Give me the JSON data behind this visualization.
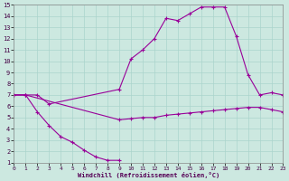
{
  "xlabel": "Windchill (Refroidissement éolien,°C)",
  "bg_color": "#cce8e0",
  "grid_color": "#aad4cc",
  "line_color": "#990099",
  "xlim": [
    0,
    23
  ],
  "ylim": [
    1,
    15
  ],
  "xticks": [
    0,
    1,
    2,
    3,
    4,
    5,
    6,
    7,
    8,
    9,
    10,
    11,
    12,
    13,
    14,
    15,
    16,
    17,
    18,
    19,
    20,
    21,
    22,
    23
  ],
  "yticks": [
    1,
    2,
    3,
    4,
    5,
    6,
    7,
    8,
    9,
    10,
    11,
    12,
    13,
    14,
    15
  ],
  "curve1_x": [
    0,
    1,
    2,
    3,
    4,
    5,
    6,
    7,
    8,
    9
  ],
  "curve1_y": [
    7.0,
    7.0,
    5.5,
    4.3,
    3.3,
    2.8,
    2.1,
    1.5,
    1.2,
    1.2
  ],
  "curve2_x": [
    0,
    1,
    2,
    9,
    10,
    11,
    12,
    13,
    14,
    15,
    16,
    17,
    18,
    19,
    20,
    21,
    22,
    23
  ],
  "curve2_y": [
    7.0,
    7.0,
    7.0,
    4.8,
    4.9,
    5.0,
    5.0,
    5.2,
    5.3,
    5.4,
    5.5,
    5.6,
    5.7,
    5.8,
    5.9,
    5.9,
    5.7,
    5.5
  ],
  "curve3_x": [
    0,
    1,
    2,
    3,
    9,
    10,
    11,
    12,
    13,
    14,
    15,
    16,
    17,
    18,
    19,
    20,
    21,
    22,
    23
  ],
  "curve3_y": [
    7.0,
    7.0,
    7.0,
    6.2,
    7.5,
    10.2,
    11.0,
    12.0,
    13.8,
    13.6,
    14.2,
    14.8,
    14.8,
    14.8,
    12.2,
    8.8,
    7.0,
    7.2,
    7.0
  ]
}
